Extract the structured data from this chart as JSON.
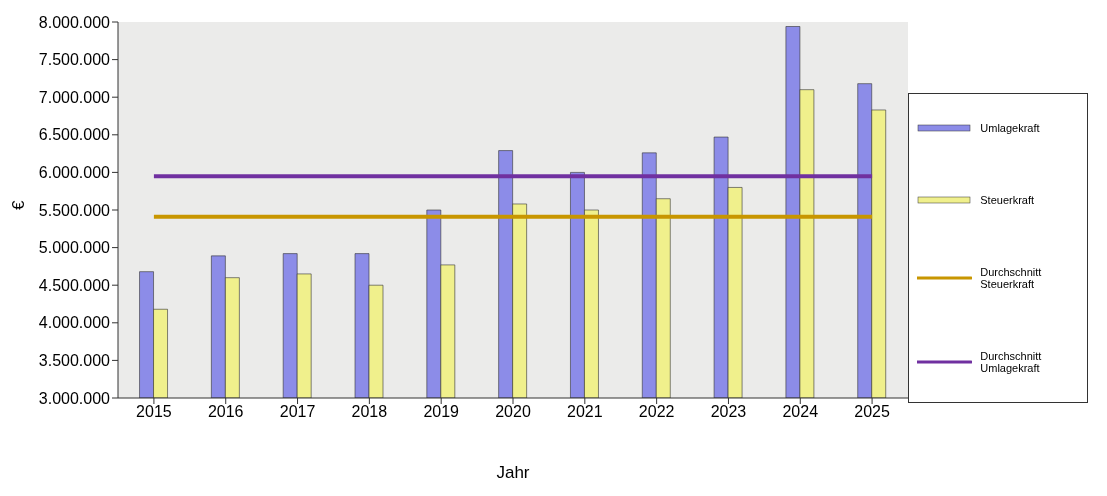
{
  "chart_data": {
    "type": "bar",
    "xlabel": "Jahr",
    "ylabel": "€",
    "categories": [
      "2015",
      "2016",
      "2017",
      "2018",
      "2019",
      "2020",
      "2021",
      "2022",
      "2023",
      "2024",
      "2025"
    ],
    "series": [
      {
        "name": "Umlagekraft",
        "color": "#8c8ce8",
        "values": [
          4680000,
          4890000,
          4920000,
          4920000,
          5500000,
          6290000,
          6000000,
          6260000,
          6470000,
          7940000,
          7180000
        ]
      },
      {
        "name": "Steuerkraft",
        "color": "#f0f08c",
        "values": [
          4180000,
          4600000,
          4650000,
          4500000,
          4770000,
          5580000,
          5500000,
          5650000,
          5800000,
          7100000,
          6830000
        ]
      },
      {
        "name": "Durchschnitt Steuerkraft",
        "type": "line",
        "color": "#c89600",
        "values": [
          5410000,
          5410000,
          5410000,
          5410000,
          5410000,
          5410000,
          5410000,
          5410000,
          5410000,
          5410000,
          5410000
        ]
      },
      {
        "name": "Durchschnitt Umlagekraft",
        "type": "line",
        "color": "#7030a0",
        "values": [
          5950000,
          5950000,
          5950000,
          5950000,
          5950000,
          5950000,
          5950000,
          5950000,
          5950000,
          5950000,
          5950000
        ]
      }
    ],
    "ylim": [
      3000000,
      8000000
    ],
    "yticks": [
      {
        "value": 3000000,
        "label": "3.000.000"
      },
      {
        "value": 3500000,
        "label": "3.500.000"
      },
      {
        "value": 4000000,
        "label": "4.000.000"
      },
      {
        "value": 4500000,
        "label": "4.500.000"
      },
      {
        "value": 5000000,
        "label": "5.000.000"
      },
      {
        "value": 5500000,
        "label": "5.500.000"
      },
      {
        "value": 6000000,
        "label": "6.000.000"
      },
      {
        "value": 6500000,
        "label": "6.500.000"
      },
      {
        "value": 7000000,
        "label": "7.000.000"
      },
      {
        "value": 7500000,
        "label": "7.500.000"
      },
      {
        "value": 8000000,
        "label": "8.000.000"
      }
    ],
    "legend": "right",
    "marker": "none"
  }
}
